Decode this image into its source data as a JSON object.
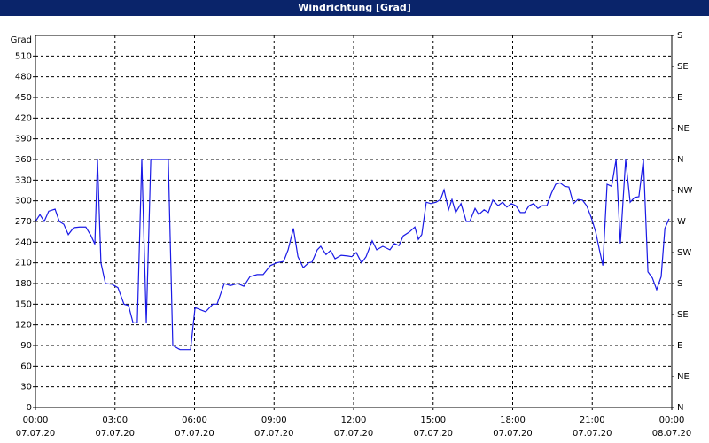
{
  "chart_data": {
    "type": "line",
    "title": "Windrichtung [Grad]",
    "y_label": "Grad",
    "color": "#1a1ae6",
    "grid": true,
    "x": [
      0,
      0.17,
      0.33,
      0.5,
      0.74,
      0.9,
      1.07,
      1.24,
      1.44,
      1.67,
      1.9,
      2.1,
      2.24,
      2.34,
      2.47,
      2.64,
      2.88,
      3.11,
      3.34,
      3.51,
      3.68,
      3.84,
      4.01,
      4.18,
      4.35,
      5.01,
      5.18,
      5.45,
      5.85,
      6.02,
      6.28,
      6.42,
      6.69,
      6.85,
      7.12,
      7.35,
      7.62,
      7.86,
      8.09,
      8.36,
      8.59,
      8.86,
      9.09,
      9.36,
      9.53,
      9.73,
      9.9,
      10.1,
      10.3,
      10.43,
      10.63,
      10.76,
      10.96,
      11.13,
      11.3,
      11.53,
      11.77,
      11.93,
      12.1,
      12.3,
      12.47,
      12.7,
      12.87,
      13.1,
      13.37,
      13.54,
      13.71,
      13.87,
      14.11,
      14.31,
      14.44,
      14.57,
      14.74,
      14.91,
      15.11,
      15.28,
      15.41,
      15.58,
      15.71,
      15.85,
      16.05,
      16.25,
      16.38,
      16.58,
      16.72,
      16.92,
      17.08,
      17.25,
      17.45,
      17.62,
      17.78,
      17.95,
      18.12,
      18.29,
      18.45,
      18.62,
      18.79,
      18.95,
      19.12,
      19.29,
      19.46,
      19.62,
      19.79,
      19.96,
      20.12,
      20.29,
      20.46,
      20.63,
      20.79,
      20.96,
      21.13,
      21.26,
      21.4,
      21.56,
      21.73,
      21.9,
      22.06,
      22.26,
      22.43,
      22.6,
      22.76,
      22.93,
      23.1,
      23.27,
      23.43,
      23.6,
      23.74,
      23.9
    ],
    "values": [
      270,
      280,
      270,
      285,
      288,
      270,
      266,
      251,
      261,
      262,
      262,
      249,
      237,
      360,
      210,
      180,
      179,
      174,
      150,
      148,
      123,
      123,
      360,
      123,
      360,
      360,
      90,
      84,
      84,
      145,
      141,
      139,
      150,
      150,
      180,
      177,
      180,
      176,
      190,
      193,
      193,
      206,
      210,
      212,
      229,
      260,
      219,
      203,
      210,
      211,
      229,
      234,
      222,
      228,
      216,
      221,
      220,
      219,
      225,
      210,
      219,
      242,
      229,
      234,
      229,
      238,
      235,
      249,
      255,
      262,
      244,
      251,
      298,
      296,
      298,
      302,
      316,
      287,
      302,
      283,
      296,
      270,
      270,
      289,
      280,
      287,
      283,
      301,
      293,
      298,
      291,
      296,
      293,
      283,
      283,
      293,
      296,
      289,
      293,
      293,
      311,
      324,
      326,
      321,
      320,
      296,
      302,
      301,
      293,
      276,
      255,
      231,
      206,
      324,
      321,
      360,
      238,
      360,
      298,
      305,
      306,
      360,
      197,
      188,
      171,
      190,
      260,
      274
    ],
    "xlim": [
      0,
      24
    ],
    "xticks": [
      {
        "value": 0,
        "label": "00:00"
      },
      {
        "value": 3,
        "label": "03:00"
      },
      {
        "value": 6,
        "label": "06:00"
      },
      {
        "value": 9,
        "label": "09:00"
      },
      {
        "value": 12,
        "label": "12:00"
      },
      {
        "value": 15,
        "label": "15:00"
      },
      {
        "value": 18,
        "label": "18:00"
      },
      {
        "value": 21,
        "label": "21:00"
      },
      {
        "value": 24,
        "label": "00:00"
      }
    ],
    "xtick_dates": [
      "07.07.20",
      "07.07.20",
      "07.07.20",
      "07.07.20",
      "07.07.20",
      "07.07.20",
      "07.07.20",
      "07.07.20",
      "08.07.20"
    ],
    "ylim": [
      0,
      540
    ],
    "yticks": [
      0,
      30,
      60,
      90,
      120,
      150,
      180,
      210,
      240,
      270,
      300,
      330,
      360,
      390,
      420,
      450,
      480,
      510
    ],
    "y2lim": [
      0,
      540
    ],
    "y2ticks": [
      {
        "value": 0,
        "label": "N"
      },
      {
        "value": 45,
        "label": "NE"
      },
      {
        "value": 90,
        "label": "E"
      },
      {
        "value": 135,
        "label": "SE"
      },
      {
        "value": 180,
        "label": "S"
      },
      {
        "value": 225,
        "label": "SW"
      },
      {
        "value": 270,
        "label": "W"
      },
      {
        "value": 315,
        "label": "NW"
      },
      {
        "value": 360,
        "label": "N"
      },
      {
        "value": 405,
        "label": "NE"
      },
      {
        "value": 450,
        "label": "E"
      },
      {
        "value": 495,
        "label": "SE"
      },
      {
        "value": 540,
        "label": "S"
      }
    ]
  }
}
